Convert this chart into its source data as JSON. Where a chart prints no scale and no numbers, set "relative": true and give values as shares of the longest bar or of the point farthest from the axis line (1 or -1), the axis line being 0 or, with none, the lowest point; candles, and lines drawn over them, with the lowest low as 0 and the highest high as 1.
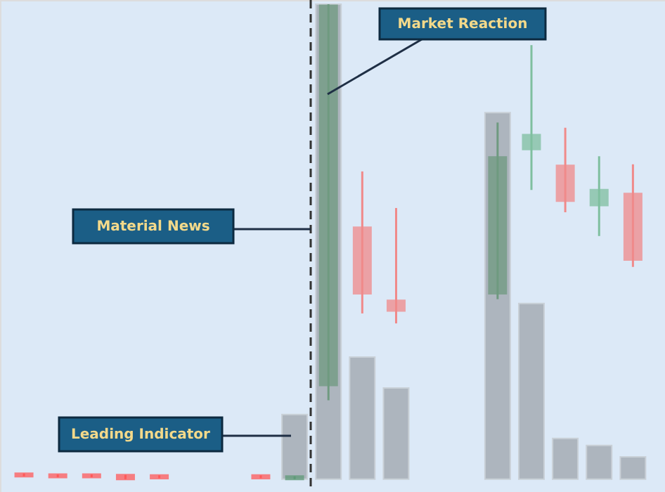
{
  "chart_data": {
    "type": "candlestick",
    "relative": true,
    "categories": [
      null,
      null,
      null,
      null,
      null,
      null,
      null,
      null,
      null,
      null,
      null,
      null,
      null,
      null,
      null,
      null,
      null,
      null,
      null
    ],
    "ohlc": [
      [
        0.012,
        0.012,
        0.006,
        0.006
      ],
      [
        0.01,
        0.01,
        0.004,
        0.004
      ],
      [
        0.01,
        0.01,
        0.004,
        0.004
      ],
      [
        0.009,
        0.009,
        0.0,
        0.0
      ],
      [
        0.008,
        0.008,
        0.002,
        0.002
      ],
      null,
      null,
      [
        0.008,
        0.008,
        0.002,
        0.002
      ],
      [
        0.0,
        0.006,
        0.0,
        0.006
      ],
      [
        0.198,
        1.0,
        0.166,
        0.997
      ],
      [
        0.53,
        0.648,
        0.349,
        0.391
      ],
      [
        0.376,
        0.571,
        0.328,
        0.355
      ],
      null,
      null,
      [
        0.391,
        0.751,
        0.379,
        0.678
      ],
      [
        0.695,
        0.914,
        0.609,
        0.725
      ],
      [
        0.66,
        0.74,
        0.562,
        0.586
      ],
      [
        0.577,
        0.68,
        0.512,
        0.609
      ],
      [
        0.601,
        0.663,
        0.447,
        0.462
      ]
    ],
    "colors": [
      "#ff5a5a",
      "#ff5a5a",
      "#ff5a5a",
      "#ff5a5a",
      "#ff5a5a",
      null,
      null,
      "#ff5a5a",
      "#5f9a78",
      "#6f9a80",
      "#f08a8a",
      "#f08a8a",
      null,
      null,
      "#6f9a80",
      "#7fbf9f",
      "#f08a8a",
      "#7fbf9f",
      "#f08a8a"
    ],
    "series": [
      {
        "type": "bar",
        "color": "#a9b0b8",
        "values": [
          null,
          null,
          null,
          null,
          null,
          null,
          null,
          null,
          0.136,
          1,
          0.257,
          0.192,
          null,
          null,
          0.772,
          0.37,
          0.086,
          0.071,
          0.047
        ]
      }
    ],
    "annotations": [
      "Market Reaction",
      "Material News",
      "Leading Indicator"
    ]
  }
}
